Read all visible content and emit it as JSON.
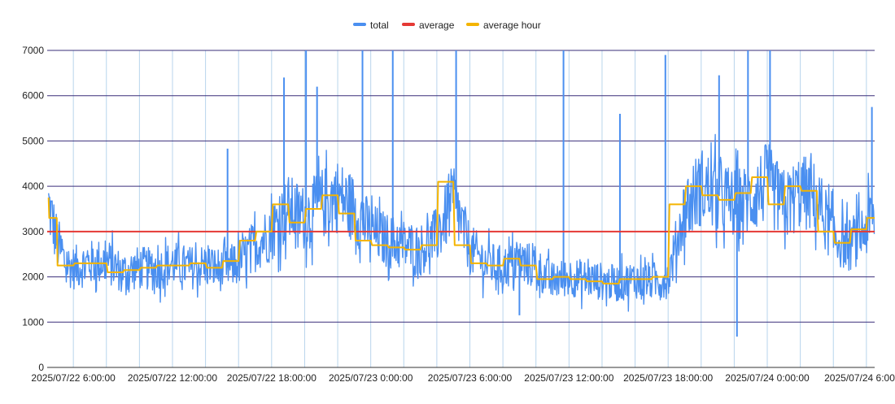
{
  "colors": {
    "total": "#4a8ff0",
    "average": "#e53935",
    "average_hour": "#f4b400",
    "major_grid": "#3a2e7a",
    "minor_grid": "#b8d4ec",
    "axis": "#333333"
  },
  "chart_data": {
    "type": "line",
    "legend_position": "top-center",
    "grid": true,
    "xlim": [
      "2025/07/22 4:25:00",
      "2025/07/24 6:30:00"
    ],
    "ylim": [
      0,
      7000
    ],
    "y_ticks": [
      "0",
      "1000",
      "2000",
      "3000",
      "4000",
      "5000",
      "6000",
      "7000"
    ],
    "y_tick_values": [
      0,
      1000,
      2000,
      3000,
      4000,
      5000,
      6000,
      7000
    ],
    "x_ticks": [
      "2025/07/22 6:00:00",
      "2025/07/22 12:00:00",
      "2025/07/22 18:00:00",
      "2025/07/23 0:00:00",
      "2025/07/23 6:00:00",
      "2025/07/23 12:00:00",
      "2025/07/23 18:00:00",
      "2025/07/24 0:00:00",
      "2025/07/24 6:00:00"
    ],
    "series": [
      {
        "name": "total",
        "x": [
          "2025/07/22 4:30",
          "2025/07/22 5:00",
          "2025/07/22 5:30",
          "2025/07/22 6:00",
          "2025/07/22 7:00",
          "2025/07/22 8:00",
          "2025/07/22 9:00",
          "2025/07/22 10:00",
          "2025/07/22 11:00",
          "2025/07/22 12:00",
          "2025/07/22 13:00",
          "2025/07/22 14:00",
          "2025/07/22 15:00",
          "2025/07/22 16:00",
          "2025/07/22 17:00",
          "2025/07/22 18:00",
          "2025/07/22 19:00",
          "2025/07/22 20:00",
          "2025/07/22 21:00",
          "2025/07/22 22:00",
          "2025/07/22 23:00",
          "2025/07/23 0:00",
          "2025/07/23 1:00",
          "2025/07/23 2:00",
          "2025/07/23 3:00",
          "2025/07/23 4:00",
          "2025/07/23 5:00",
          "2025/07/23 6:00",
          "2025/07/23 7:00",
          "2025/07/23 8:00",
          "2025/07/23 9:00",
          "2025/07/23 10:00",
          "2025/07/23 11:00",
          "2025/07/23 12:00",
          "2025/07/23 13:00",
          "2025/07/23 14:00",
          "2025/07/23 15:00",
          "2025/07/23 16:00",
          "2025/07/23 17:00",
          "2025/07/23 18:00",
          "2025/07/23 19:00",
          "2025/07/23 20:00",
          "2025/07/23 21:00",
          "2025/07/23 22:00",
          "2025/07/23 23:00",
          "2025/07/24 0:00",
          "2025/07/24 1:00",
          "2025/07/24 2:00",
          "2025/07/24 3:00",
          "2025/07/24 4:00",
          "2025/07/24 5:00",
          "2025/07/24 6:00",
          "2025/07/24 6:30"
        ],
        "values": [
          3600,
          2800,
          2300,
          2200,
          2300,
          2350,
          2100,
          2200,
          2150,
          2300,
          2200,
          2250,
          2150,
          2300,
          2700,
          3000,
          3500,
          3300,
          3600,
          3800,
          3500,
          3000,
          2800,
          2700,
          2600,
          2900,
          3700,
          2600,
          2300,
          2200,
          2350,
          2200,
          1900,
          2000,
          1950,
          1900,
          1850,
          1950,
          1900,
          1950,
          3500,
          4000,
          3800,
          3600,
          3700,
          4100,
          3500,
          3900,
          3700,
          2900,
          2700,
          3100,
          3400
        ],
        "spikes": [
          {
            "x": "2025/07/22 15:20",
            "y": 4830
          },
          {
            "x": "2025/07/22 18:45",
            "y": 6400
          },
          {
            "x": "2025/07/22 20:05",
            "y": 7000
          },
          {
            "x": "2025/07/22 20:45",
            "y": 6200
          },
          {
            "x": "2025/07/22 23:30",
            "y": 7000
          },
          {
            "x": "2025/07/23 1:20",
            "y": 7000
          },
          {
            "x": "2025/07/23 5:10",
            "y": 7000
          },
          {
            "x": "2025/07/23 11:40",
            "y": 7000
          },
          {
            "x": "2025/07/23 15:05",
            "y": 5600
          },
          {
            "x": "2025/07/23 17:50",
            "y": 6900
          },
          {
            "x": "2025/07/23 21:05",
            "y": 6450
          },
          {
            "x": "2025/07/23 22:50",
            "y": 7000
          },
          {
            "x": "2025/07/24 0:10",
            "y": 7000
          },
          {
            "x": "2025/07/24 6:20",
            "y": 5750
          }
        ],
        "dips": [
          {
            "x": "2025/07/23 22:10",
            "y": 680
          },
          {
            "x": "2025/07/23 9:00",
            "y": 1150
          }
        ]
      },
      {
        "name": "average",
        "x": [
          "2025/07/22 4:25:00",
          "2025/07/24 6:30:00"
        ],
        "values": [
          3000,
          3000
        ]
      },
      {
        "name": "average hour",
        "x": [
          "2025/07/22 4:30",
          "2025/07/22 5:00",
          "2025/07/22 5:30",
          "2025/07/22 6:00",
          "2025/07/22 7:00",
          "2025/07/22 8:00",
          "2025/07/22 9:00",
          "2025/07/22 10:00",
          "2025/07/22 11:00",
          "2025/07/22 12:00",
          "2025/07/22 13:00",
          "2025/07/22 14:00",
          "2025/07/22 15:00",
          "2025/07/22 16:00",
          "2025/07/22 17:00",
          "2025/07/22 18:00",
          "2025/07/22 19:00",
          "2025/07/22 20:00",
          "2025/07/22 21:00",
          "2025/07/22 22:00",
          "2025/07/22 23:00",
          "2025/07/23 0:00",
          "2025/07/23 1:00",
          "2025/07/23 2:00",
          "2025/07/23 3:00",
          "2025/07/23 4:00",
          "2025/07/23 5:00",
          "2025/07/23 6:00",
          "2025/07/23 7:00",
          "2025/07/23 8:00",
          "2025/07/23 9:00",
          "2025/07/23 10:00",
          "2025/07/23 11:00",
          "2025/07/23 12:00",
          "2025/07/23 13:00",
          "2025/07/23 14:00",
          "2025/07/23 15:00",
          "2025/07/23 16:00",
          "2025/07/23 17:00",
          "2025/07/23 18:00",
          "2025/07/23 19:00",
          "2025/07/23 20:00",
          "2025/07/23 21:00",
          "2025/07/23 22:00",
          "2025/07/23 23:00",
          "2025/07/24 0:00",
          "2025/07/24 1:00",
          "2025/07/24 2:00",
          "2025/07/24 3:00",
          "2025/07/24 4:00",
          "2025/07/24 5:00",
          "2025/07/24 6:00",
          "2025/07/24 6:30"
        ],
        "values": [
          3750,
          3300,
          2250,
          2250,
          2300,
          2300,
          2100,
          2150,
          2200,
          2250,
          2250,
          2300,
          2200,
          2350,
          2800,
          3000,
          3600,
          3200,
          3500,
          3800,
          3400,
          2800,
          2700,
          2650,
          2600,
          2700,
          4100,
          2700,
          2300,
          2250,
          2400,
          2250,
          1950,
          2000,
          1950,
          1900,
          1850,
          1950,
          1950,
          2000,
          3600,
          4000,
          3800,
          3700,
          3850,
          4200,
          3600,
          4000,
          3900,
          3000,
          2750,
          3050,
          3300
        ]
      }
    ]
  }
}
